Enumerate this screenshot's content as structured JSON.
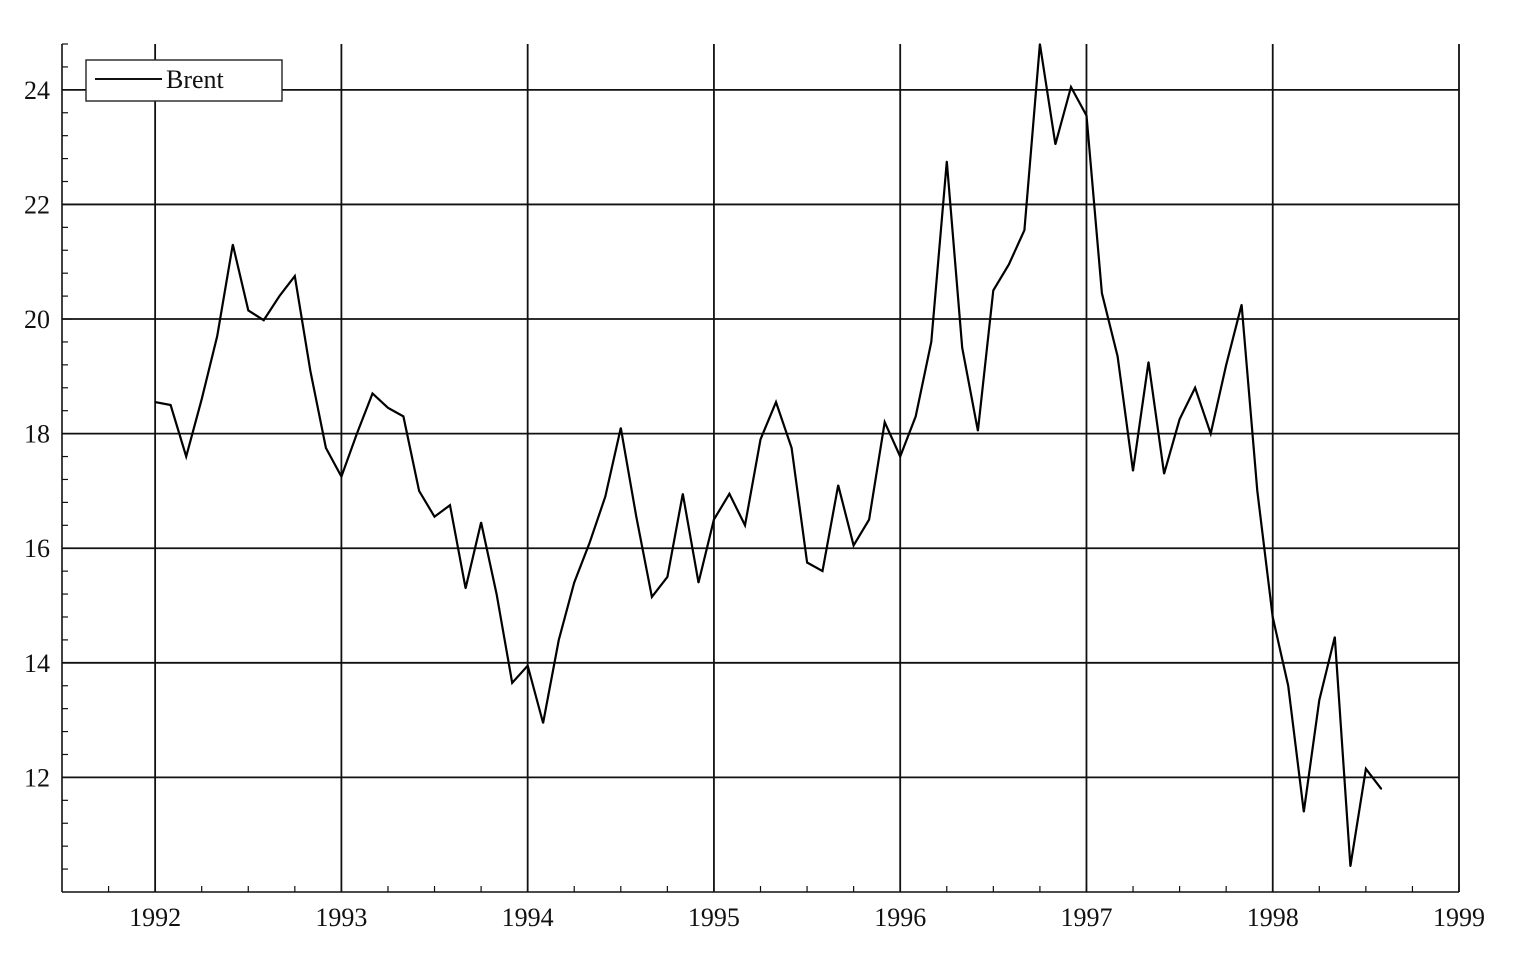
{
  "chart_data": {
    "type": "line",
    "title": "",
    "xlabel": "",
    "ylabel": "",
    "xlim": [
      1991.5,
      1999.0
    ],
    "ylim": [
      10.0,
      24.8
    ],
    "x_ticks": [
      1992,
      1993,
      1994,
      1995,
      1996,
      1997,
      1998,
      1999
    ],
    "y_ticks": [
      12,
      14,
      16,
      18,
      20,
      22,
      24
    ],
    "grid": true,
    "legend": {
      "position": "top-left",
      "entries": [
        "Brent"
      ]
    },
    "series": [
      {
        "name": "Brent",
        "color": "#000000",
        "x": [
          1992.0,
          1992.083,
          1992.167,
          1992.25,
          1992.333,
          1992.417,
          1992.5,
          1992.583,
          1992.667,
          1992.75,
          1992.833,
          1992.917,
          1993.0,
          1993.083,
          1993.167,
          1993.25,
          1993.333,
          1993.417,
          1993.5,
          1993.583,
          1993.667,
          1993.75,
          1993.833,
          1993.917,
          1994.0,
          1994.083,
          1994.167,
          1994.25,
          1994.333,
          1994.417,
          1994.5,
          1994.583,
          1994.667,
          1994.75,
          1994.833,
          1994.917,
          1995.0,
          1995.083,
          1995.167,
          1995.25,
          1995.333,
          1995.417,
          1995.5,
          1995.583,
          1995.667,
          1995.75,
          1995.833,
          1995.917,
          1996.0,
          1996.083,
          1996.167,
          1996.25,
          1996.333,
          1996.417,
          1996.5,
          1996.583,
          1996.667,
          1996.75,
          1996.833,
          1996.917,
          1997.0,
          1997.083,
          1997.167,
          1997.25,
          1997.333,
          1997.417,
          1997.5,
          1997.583,
          1997.667,
          1997.75,
          1997.833,
          1997.917,
          1998.0,
          1998.083,
          1998.167,
          1998.25,
          1998.333,
          1998.417,
          1998.5,
          1998.583
        ],
        "y": [
          18.55,
          18.5,
          17.6,
          18.6,
          19.7,
          21.3,
          20.15,
          19.98,
          20.4,
          20.75,
          19.1,
          17.75,
          17.25,
          18.0,
          18.7,
          18.45,
          18.3,
          17.0,
          16.55,
          16.75,
          15.3,
          16.45,
          15.2,
          13.65,
          13.95,
          12.95,
          14.4,
          15.4,
          16.1,
          16.9,
          18.1,
          16.55,
          15.15,
          15.5,
          16.95,
          15.4,
          16.5,
          16.95,
          16.4,
          17.9,
          18.55,
          17.75,
          15.75,
          15.6,
          17.1,
          16.05,
          16.5,
          18.2,
          17.6,
          18.3,
          19.6,
          22.75,
          19.5,
          18.05,
          20.5,
          20.95,
          21.55,
          24.8,
          23.05,
          24.05,
          23.55,
          20.45,
          19.35,
          17.35,
          19.25,
          17.3,
          18.25,
          18.8,
          18.0,
          19.2,
          20.25,
          17.0,
          14.8,
          13.6,
          11.4,
          13.35,
          14.45,
          10.45,
          12.15,
          11.8
        ]
      }
    ]
  }
}
